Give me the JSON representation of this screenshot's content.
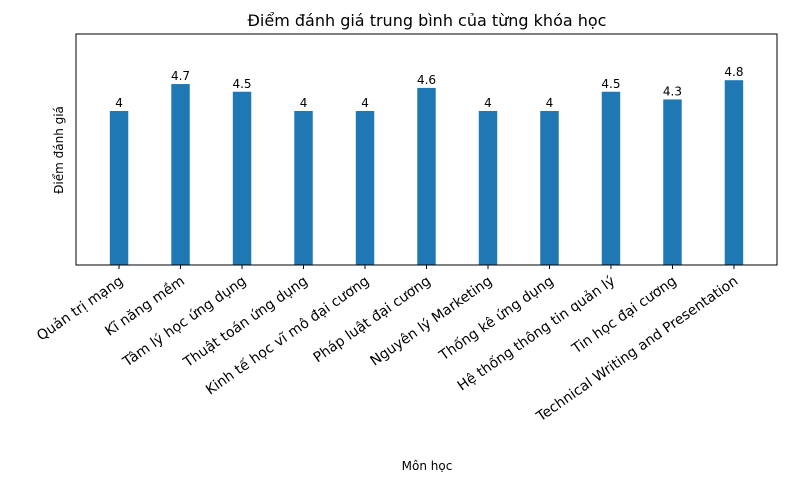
{
  "chart_data": {
    "type": "bar",
    "title": "Điểm đánh giá trung bình của từng khóa học",
    "xlabel": "Môn học",
    "ylabel": "Điểm đánh giá",
    "categories": [
      "Quản trị mạng",
      "Kĩ năng mềm",
      "Tâm lý học ứng dụng",
      "Thuật toán ứng dụng",
      "Kinh tế học vĩ mô đại cương",
      "Pháp luật đại cương",
      "Nguyên lý Marketing",
      "Thống kê ứng dụng",
      "Hệ thống thông tin quản lý",
      "Tin học đại cương",
      "Technical Writing and Presentation"
    ],
    "values": [
      4,
      4.7,
      4.5,
      4,
      4,
      4.6,
      4,
      4,
      4.5,
      4.3,
      4.8
    ],
    "value_labels": [
      "4",
      "4.7",
      "4.5",
      "4",
      "4",
      "4.6",
      "4",
      "4",
      "4.5",
      "4.3",
      "4.8"
    ],
    "ylim": [
      0,
      6
    ],
    "y_ticks_visible": false,
    "grid": false,
    "bar_color": "#1f77b4"
  }
}
